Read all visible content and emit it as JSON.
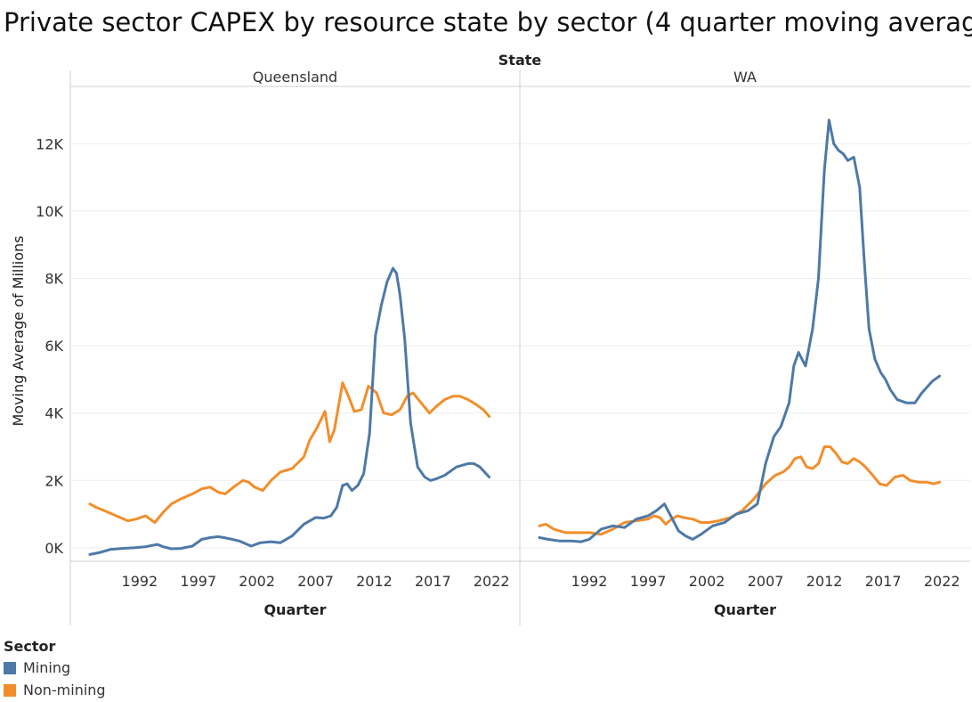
{
  "colors": {
    "mining": "#4e79a7",
    "non_mining": "#f28e2b"
  },
  "chart_data": {
    "type": "line",
    "title": "Private sector CAPEX by resource state by sector (4 quarter moving average)",
    "facet_label": "State",
    "xlabel": "Quarter",
    "ylabel": "Moving Average of Millions",
    "xlim": [
      1987,
      2023.5
    ],
    "ylim": [
      -400,
      13700
    ],
    "y_ticks": [
      0,
      2000,
      4000,
      6000,
      8000,
      10000,
      12000
    ],
    "y_tick_labels": [
      "0K",
      "2K",
      "4K",
      "6K",
      "8K",
      "10K",
      "12K"
    ],
    "x_ticks": [
      1992,
      1997,
      2002,
      2007,
      2012,
      2017,
      2022
    ],
    "x_tick_labels": [
      "1992",
      "1997",
      "2002",
      "2007",
      "2012",
      "2017",
      "2022"
    ],
    "grid": true,
    "legend_title": "Sector",
    "legend_entries": [
      "Mining",
      "Non-mining"
    ],
    "legend_position": "bottom-left",
    "panels": [
      {
        "name": "Queensland",
        "series": [
          {
            "name": "Mining",
            "x": [
              1987.75,
              1988.5,
              1989.5,
              1990.5,
              1991.5,
              1992.5,
              1993.5,
              1994,
              1994.7,
              1995.5,
              1996.5,
              1997.3,
              1998,
              1998.7,
              1999.2,
              1999.8,
              2000.5,
              2001.5,
              2002.3,
              2003.2,
              2004,
              2005,
              2006,
              2007,
              2007.7,
              2008.3,
              2008.8,
              2009.3,
              2009.7,
              2010.1,
              2010.6,
              2011.1,
              2011.6,
              2012.1,
              2012.6,
              2013.1,
              2013.6,
              2013.9,
              2014.2,
              2014.6,
              2015.1,
              2015.7,
              2016.3,
              2016.8,
              2017.3,
              2018,
              2019,
              2020,
              2020.5,
              2021,
              2021.4,
              2021.8
            ],
            "y": [
              -200,
              -150,
              -50,
              -20,
              0,
              30,
              100,
              30,
              -30,
              -20,
              50,
              250,
              300,
              330,
              300,
              260,
              200,
              50,
              150,
              180,
              150,
              350,
              700,
              900,
              880,
              950,
              1200,
              1850,
              1900,
              1700,
              1850,
              2200,
              3400,
              6300,
              7200,
              7900,
              8300,
              8150,
              7500,
              6200,
              3700,
              2400,
              2100,
              2000,
              2050,
              2150,
              2400,
              2500,
              2500,
              2400,
              2250,
              2100
            ]
          },
          {
            "name": "Non-mining",
            "x": [
              1987.75,
              1988.3,
              1989,
              1990,
              1991,
              1991.7,
              1992.5,
              1993.3,
              1994,
              1994.7,
              1995.5,
              1996.5,
              1997.3,
              1998,
              1998.7,
              1999.3,
              2000,
              2000.8,
              2001.3,
              2001.8,
              2002.5,
              2003.2,
              2004,
              2005,
              2006,
              2006.5,
              2007.1,
              2007.8,
              2008.2,
              2008.6,
              2009.3,
              2009.8,
              2010.3,
              2010.9,
              2011.5,
              2012.2,
              2012.8,
              2013.5,
              2014.2,
              2014.8,
              2015.3,
              2016,
              2016.7,
              2017.3,
              2018,
              2018.7,
              2019.3,
              2020,
              2020.7,
              2021.3,
              2021.8
            ],
            "y": [
              1300,
              1200,
              1100,
              950,
              800,
              850,
              950,
              750,
              1050,
              1300,
              1450,
              1600,
              1750,
              1800,
              1650,
              1600,
              1800,
              2000,
              1950,
              1800,
              1700,
              2000,
              2250,
              2350,
              2700,
              3200,
              3550,
              4050,
              3150,
              3500,
              4900,
              4500,
              4050,
              4100,
              4800,
              4600,
              4000,
              3950,
              4100,
              4500,
              4600,
              4300,
              4000,
              4200,
              4400,
              4500,
              4500,
              4400,
              4250,
              4100,
              3900
            ]
          }
        ]
      },
      {
        "name": "WA",
        "series": [
          {
            "name": "Mining",
            "x": [
              1987.75,
              1988.5,
              1989.5,
              1990.5,
              1991.3,
              1992,
              1993,
              1994,
              1995,
              1996,
              1997,
              1997.7,
              1998.4,
              1999,
              1999.6,
              2000.2,
              2000.8,
              2001.5,
              2002.5,
              2003.5,
              2004.5,
              2005.5,
              2006.3,
              2007,
              2007.7,
              2008.3,
              2009,
              2009.4,
              2009.8,
              2010.4,
              2011,
              2011.5,
              2012,
              2012.4,
              2012.8,
              2013.2,
              2013.6,
              2014,
              2014.5,
              2015,
              2015.4,
              2015.8,
              2016.3,
              2016.8,
              2017.2,
              2017.6,
              2018.2,
              2019,
              2019.7,
              2020.3,
              2021.2,
              2021.8
            ],
            "y": [
              300,
              250,
              200,
              200,
              180,
              250,
              550,
              650,
              600,
              850,
              950,
              1100,
              1300,
              900,
              500,
              350,
              250,
              400,
              650,
              750,
              1000,
              1100,
              1300,
              2500,
              3300,
              3600,
              4300,
              5400,
              5800,
              5400,
              6500,
              8000,
              11200,
              12700,
              12000,
              11800,
              11700,
              11500,
              11600,
              10700,
              8500,
              6500,
              5600,
              5200,
              5000,
              4700,
              4400,
              4300,
              4300,
              4600,
              4950,
              5100
            ]
          },
          {
            "name": "Non-mining",
            "x": [
              1987.75,
              1988.3,
              1989,
              1990,
              1991,
              1992,
              1993,
              1994,
              1995,
              1996,
              1997,
              1997.5,
              1998,
              1998.5,
              1999,
              1999.5,
              2000,
              2000.8,
              2001.5,
              2002.2,
              2003,
              2004,
              2005,
              2006,
              2007,
              2007.8,
              2008.5,
              2009,
              2009.5,
              2010,
              2010.5,
              2011,
              2011.5,
              2012,
              2012.5,
              2013,
              2013.5,
              2014,
              2014.5,
              2015,
              2015.5,
              2016,
              2016.7,
              2017.3,
              2018,
              2018.7,
              2019.3,
              2020,
              2020.7,
              2021.3,
              2021.8
            ],
            "y": [
              650,
              700,
              550,
              450,
              450,
              450,
              400,
              550,
              750,
              800,
              850,
              950,
              900,
              700,
              850,
              950,
              900,
              850,
              750,
              750,
              800,
              900,
              1100,
              1450,
              1900,
              2150,
              2250,
              2400,
              2650,
              2700,
              2400,
              2350,
              2500,
              3000,
              3000,
              2800,
              2550,
              2500,
              2650,
              2550,
              2400,
              2200,
              1900,
              1850,
              2100,
              2150,
              2000,
              1950,
              1950,
              1900,
              1950
            ]
          }
        ]
      }
    ]
  }
}
